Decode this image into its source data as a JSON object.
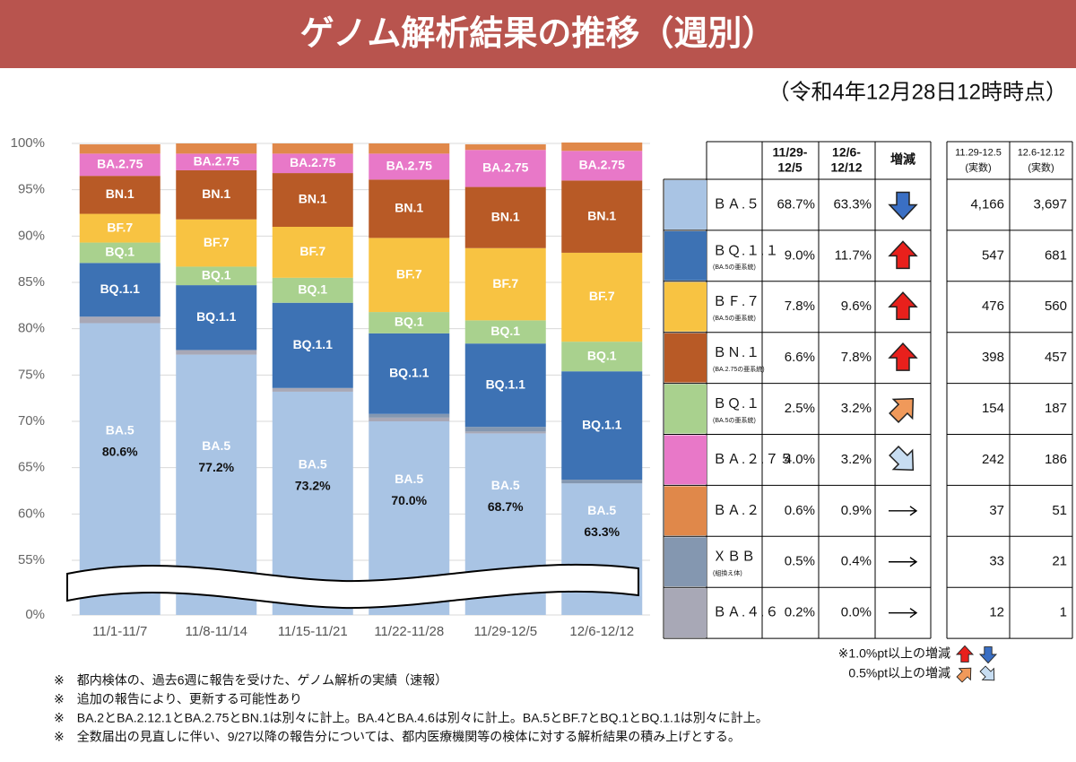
{
  "chart_data": {
    "type": "stacked-bar",
    "categories": [
      "11/1-11/7",
      "11/8-11/14",
      "11/15-11/21",
      "11/22-11/28",
      "11/29-12/5",
      "12/6-12/12"
    ],
    "series": [
      {
        "name": "BA.5",
        "color": "#a9c4e4",
        "values": [
          80.6,
          77.2,
          73.2,
          70.0,
          68.7,
          63.3
        ],
        "value_labels": [
          "80.6%",
          "77.2%",
          "73.2%",
          "70.0%",
          "68.7%",
          "63.3%"
        ]
      },
      {
        "name": "BA.4.6",
        "color": "#a8a8b6",
        "values": [
          0.7,
          0.5,
          0.4,
          0.4,
          0.2,
          0.0
        ]
      },
      {
        "name": "XBB",
        "color": "#8497b0",
        "values": [
          0,
          0,
          0,
          0.4,
          0.5,
          0.4
        ]
      },
      {
        "name": "BQ.1.1",
        "color": "#3d72b4",
        "values": [
          5.8,
          7.0,
          9.2,
          8.7,
          9.0,
          11.7
        ]
      },
      {
        "name": "BQ.1",
        "color": "#a9d18e",
        "values": [
          2.2,
          2.0,
          2.7,
          2.3,
          2.5,
          3.2
        ]
      },
      {
        "name": "BF.7",
        "color": "#f8c342",
        "values": [
          3.1,
          5.1,
          5.5,
          8.0,
          7.8,
          9.6
        ]
      },
      {
        "name": "BN.1",
        "color": "#b85a26",
        "values": [
          4.1,
          5.3,
          5.8,
          6.3,
          6.6,
          7.8
        ]
      },
      {
        "name": "BA.2.75",
        "color": "#e878c8",
        "values": [
          2.4,
          1.8,
          2.1,
          2.8,
          4.0,
          3.2
        ]
      },
      {
        "name": "BA.2",
        "color": "#e0884a",
        "values": [
          1.0,
          1.1,
          1.1,
          1.1,
          0.6,
          0.9
        ]
      }
    ],
    "ylim": [
      0,
      100
    ],
    "yticks": [
      {
        "value": 0,
        "label": "0%"
      },
      {
        "value": 55,
        "label": "55%"
      },
      {
        "value": 60,
        "label": "60%"
      },
      {
        "value": 65,
        "label": "65%"
      },
      {
        "value": 70,
        "label": "70%"
      },
      {
        "value": 75,
        "label": "75%"
      },
      {
        "value": 80,
        "label": "80%"
      },
      {
        "value": 85,
        "label": "85%"
      },
      {
        "value": 90,
        "label": "90%"
      },
      {
        "value": 95,
        "label": "95%"
      },
      {
        "value": 100,
        "label": "100%"
      }
    ],
    "axis_break": true,
    "grid": true
  },
  "header": {
    "title": "ゲノム解析結果の推移（週別）",
    "timestamp": "（令和4年12月28日12時時点）"
  },
  "table": {
    "col_pct1": "11/29-\n12/5",
    "col_pct2": "12/6-\n12/12",
    "col_trend": "増減",
    "col_count1": "11.29-12.5\n(実数)",
    "col_count2": "12.6-12.12\n(実数)",
    "rows": [
      {
        "name": "ＢＡ.５",
        "color": "#a9c4e4",
        "pct1": "68.7%",
        "pct2": "63.3%",
        "trend": "down",
        "count1": "4,166",
        "count2": "3,697"
      },
      {
        "name": "ＢＱ.１.１",
        "note": "(BA.5の亜系統)",
        "color": "#3d72b4",
        "pct1": "9.0%",
        "pct2": "11.7%",
        "trend": "up",
        "count1": "547",
        "count2": "681"
      },
      {
        "name": "ＢＦ.７",
        "note": "(BA.5の亜系統)",
        "color": "#f8c342",
        "pct1": "7.8%",
        "pct2": "9.6%",
        "trend": "up",
        "count1": "476",
        "count2": "560"
      },
      {
        "name": "ＢＮ.１",
        "note": "(BA.2.75の亜系統)",
        "color": "#b85a26",
        "pct1": "6.6%",
        "pct2": "7.8%",
        "trend": "up",
        "count1": "398",
        "count2": "457"
      },
      {
        "name": "ＢＱ.１",
        "note": "(BA.5の亜系統)",
        "color": "#a9d18e",
        "pct1": "2.5%",
        "pct2": "3.2%",
        "trend": "up-small",
        "count1": "154",
        "count2": "187"
      },
      {
        "name": "ＢＡ.２.７５",
        "color": "#e878c8",
        "pct1": "4.0%",
        "pct2": "3.2%",
        "trend": "down-small",
        "count1": "242",
        "count2": "186"
      },
      {
        "name": "ＢＡ.２",
        "color": "#e0884a",
        "pct1": "0.6%",
        "pct2": "0.9%",
        "trend": "flat",
        "count1": "37",
        "count2": "51"
      },
      {
        "name": "ＸＢＢ",
        "note": "(組換え体)",
        "color": "#8497b0",
        "pct1": "0.5%",
        "pct2": "0.4%",
        "trend": "flat",
        "count1": "33",
        "count2": "21"
      },
      {
        "name": "ＢＡ.４.６",
        "color": "#a8a8b6",
        "pct1": "0.2%",
        "pct2": "0.0%",
        "trend": "flat",
        "count1": "12",
        "count2": "1"
      }
    ],
    "legend_large": "※1.0%pt以上の増減",
    "legend_small": "0.5%pt以上の増減"
  },
  "footnotes": [
    "※　都内検体の、過去6週に報告を受けた、ゲノム解析の実績（速報）",
    "※　追加の報告により、更新する可能性あり",
    "※　BA.2とBA.2.12.1とBA.2.75とBN.1は別々に計上。BA.4とBA.4.6は別々に計上。BA.5とBF.7とBQ.1とBQ.1.1は別々に計上。",
    "※　全数届出の見直しに伴い、9/27以降の報告分については、都内医療機関等の検体に対する解析結果の積み上げとする。"
  ]
}
